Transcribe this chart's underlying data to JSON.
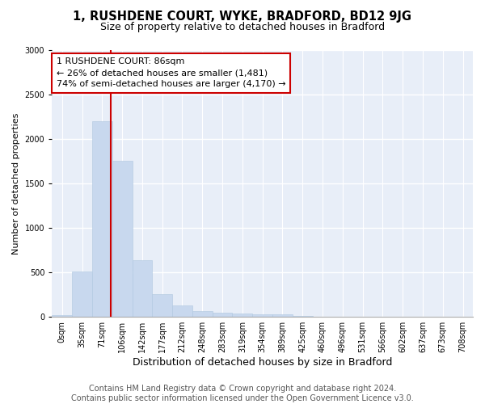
{
  "title_line1": "1, RUSHDENE COURT, WYKE, BRADFORD, BD12 9JG",
  "title_line2": "Size of property relative to detached houses in Bradford",
  "xlabel": "Distribution of detached houses by size in Bradford",
  "ylabel": "Number of detached properties",
  "bar_color": "#c8d8ee",
  "bar_edge_color": "#b0c8e0",
  "background_color": "#e8eef8",
  "grid_color": "#ffffff",
  "fig_background": "#ffffff",
  "categories": [
    "0sqm",
    "35sqm",
    "71sqm",
    "106sqm",
    "142sqm",
    "177sqm",
    "212sqm",
    "248sqm",
    "283sqm",
    "319sqm",
    "354sqm",
    "389sqm",
    "425sqm",
    "460sqm",
    "496sqm",
    "531sqm",
    "566sqm",
    "602sqm",
    "637sqm",
    "673sqm",
    "708sqm"
  ],
  "values": [
    20,
    510,
    2200,
    1750,
    640,
    255,
    130,
    65,
    50,
    35,
    30,
    25,
    10,
    5,
    3,
    2,
    1,
    1,
    1,
    1,
    1
  ],
  "ylim": [
    0,
    3000
  ],
  "yticks": [
    0,
    500,
    1000,
    1500,
    2000,
    2500,
    3000
  ],
  "annotation_text": "1 RUSHDENE COURT: 86sqm\n← 26% of detached houses are smaller (1,481)\n74% of semi-detached houses are larger (4,170) →",
  "annotation_box_color": "#ffffff",
  "annotation_border_color": "#cc0000",
  "marker_line_color": "#cc0000",
  "footer_line1": "Contains HM Land Registry data © Crown copyright and database right 2024.",
  "footer_line2": "Contains public sector information licensed under the Open Government Licence v3.0.",
  "title_fontsize": 10.5,
  "subtitle_fontsize": 9,
  "xlabel_fontsize": 9,
  "ylabel_fontsize": 8,
  "tick_fontsize": 7,
  "annotation_fontsize": 8,
  "footer_fontsize": 7
}
